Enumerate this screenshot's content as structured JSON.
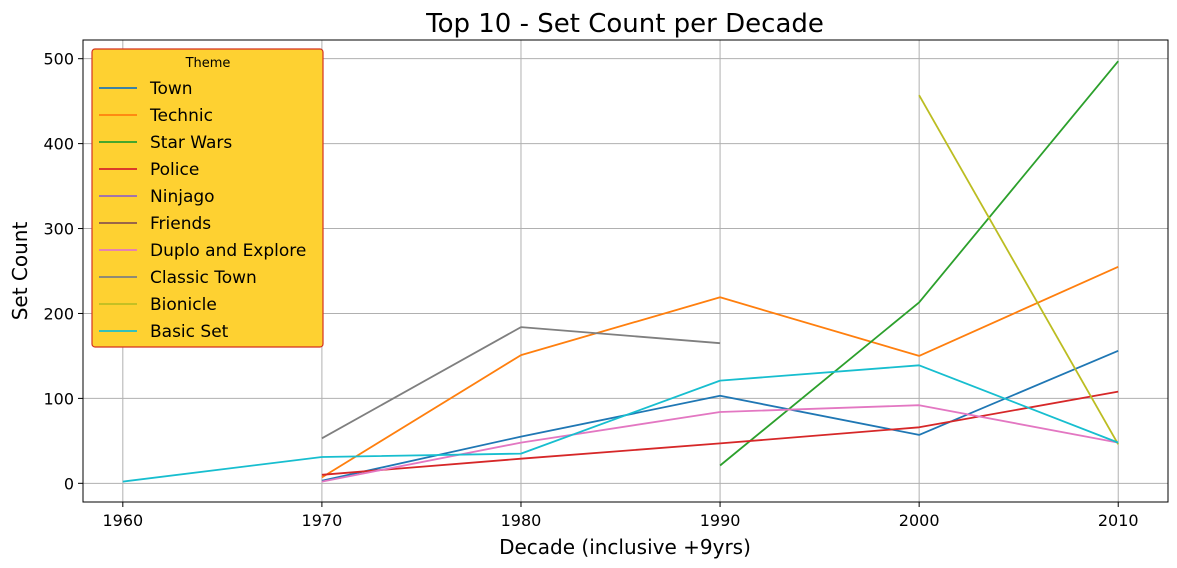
{
  "chart_data": {
    "type": "line",
    "title": "Top 10 - Set Count per Decade",
    "xlabel": "Decade (inclusive +9yrs)",
    "ylabel": "Set Count",
    "xlim": [
      1958,
      2012.5
    ],
    "ylim": [
      -22,
      522
    ],
    "xticks": [
      1960,
      1970,
      1980,
      1990,
      2000,
      2010
    ],
    "yticks": [
      0,
      100,
      200,
      300,
      400,
      500
    ],
    "grid": true,
    "legend": {
      "title": "Theme",
      "placement": "top-left",
      "background": "#fed131",
      "edge": "#d5321e"
    },
    "series": [
      {
        "name": "Town",
        "color": "#1f77b4",
        "points": [
          [
            1970,
            3
          ],
          [
            1980,
            55
          ],
          [
            1990,
            103
          ],
          [
            2000,
            57
          ],
          [
            2010,
            156
          ]
        ]
      },
      {
        "name": "Technic",
        "color": "#ff7f0e",
        "points": [
          [
            1970,
            7
          ],
          [
            1980,
            151
          ],
          [
            1990,
            219
          ],
          [
            2000,
            150
          ],
          [
            2010,
            255
          ]
        ]
      },
      {
        "name": "Star Wars",
        "color": "#2ca02c",
        "points": [
          [
            1990,
            21
          ],
          [
            2000,
            213
          ],
          [
            2010,
            497
          ]
        ]
      },
      {
        "name": "Police",
        "color": "#d62728",
        "points": [
          [
            1970,
            10
          ],
          [
            1980,
            29
          ],
          [
            1990,
            47
          ],
          [
            2000,
            66
          ],
          [
            2010,
            108
          ]
        ]
      },
      {
        "name": "Ninjago",
        "color": "#9467bd",
        "points": []
      },
      {
        "name": "Friends",
        "color": "#8c564b",
        "points": []
      },
      {
        "name": "Duplo and Explore",
        "color": "#e377c2",
        "points": [
          [
            1970,
            2
          ],
          [
            1980,
            48
          ],
          [
            1990,
            84
          ],
          [
            2000,
            92
          ],
          [
            2010,
            48
          ]
        ]
      },
      {
        "name": "Classic Town",
        "color": "#7f7f7f",
        "points": [
          [
            1970,
            53
          ],
          [
            1980,
            184
          ],
          [
            1990,
            165
          ]
        ]
      },
      {
        "name": "Bionicle",
        "color": "#bcbd22",
        "points": [
          [
            2000,
            457
          ],
          [
            2010,
            46
          ]
        ]
      },
      {
        "name": "Basic Set",
        "color": "#17becf",
        "points": [
          [
            1960,
            2
          ],
          [
            1970,
            31
          ],
          [
            1980,
            35
          ],
          [
            1990,
            121
          ],
          [
            2000,
            139
          ],
          [
            2010,
            48
          ]
        ]
      }
    ]
  }
}
